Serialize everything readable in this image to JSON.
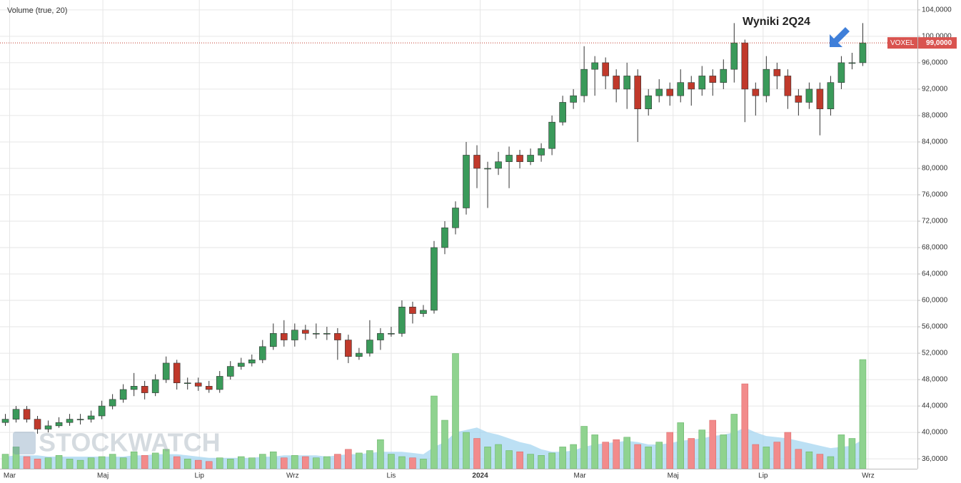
{
  "chart_data": {
    "type": "candlestick",
    "volume_label": "Volume (true, 20)",
    "annotation": "Wyniki 2Q24",
    "watermark": "STOCKWATCH",
    "last_price": {
      "name": "VOXEL",
      "value": 99,
      "label": "99,0000"
    },
    "up_color": "#3a9a5a",
    "down_color": "#c0392b",
    "volume_up_color": "#8fd38f",
    "volume_down_color": "#f28b8b",
    "volume_ma_color": "#9fd3f0",
    "grid": true,
    "x": [
      0,
      1,
      2,
      3,
      4,
      5,
      6,
      7,
      8,
      9,
      10,
      11,
      12,
      13,
      14,
      15,
      16,
      17,
      18,
      19,
      20,
      21,
      22,
      23,
      24,
      25,
      26,
      27,
      28,
      29,
      30,
      31,
      32,
      33,
      34,
      35,
      36,
      37,
      38,
      39,
      40,
      41,
      42,
      43,
      44,
      45,
      46,
      47,
      48,
      49,
      50,
      51,
      52,
      53,
      54,
      55,
      56,
      57,
      58,
      59,
      60,
      61,
      62,
      63,
      64,
      65,
      66,
      67,
      68,
      69,
      70,
      71,
      72,
      73,
      74,
      75,
      76,
      77,
      78,
      79,
      80
    ],
    "open": [
      41.5,
      42,
      43.5,
      42,
      40.5,
      41,
      41.5,
      42,
      42,
      42.5,
      44,
      45,
      46.5,
      47,
      46,
      48,
      50.5,
      47.5,
      47.5,
      47,
      46.5,
      48.5,
      50,
      50.5,
      51,
      53,
      55,
      54,
      55.5,
      55,
      55,
      55,
      54,
      51.5,
      52,
      54,
      55,
      55,
      59,
      58,
      58.5,
      68,
      71,
      74,
      82,
      80,
      80,
      81,
      82,
      81,
      82,
      83,
      87,
      90,
      91,
      95,
      96,
      94,
      92,
      94,
      89,
      91,
      92,
      91,
      93,
      92,
      94,
      93,
      95,
      99,
      92,
      91,
      95,
      94,
      91,
      90,
      92,
      89,
      93,
      96,
      96
    ],
    "high": [
      42.8,
      44,
      44,
      42.5,
      41.8,
      42.3,
      42.8,
      42.8,
      43.3,
      44.8,
      45.8,
      47.3,
      49,
      47.8,
      48.8,
      51.5,
      51,
      48.3,
      48.3,
      47.8,
      49.3,
      50.8,
      51.3,
      51.8,
      54,
      56.5,
      57,
      56.5,
      56.3,
      56.5,
      56,
      55.8,
      54.8,
      52.8,
      57,
      55.8,
      56,
      60,
      59.8,
      59.3,
      69,
      72,
      75,
      84,
      83.5,
      81,
      82.5,
      83.3,
      82.8,
      83,
      83.8,
      88,
      91,
      92,
      98.5,
      97,
      96.8,
      95,
      96,
      95,
      92,
      93.5,
      93,
      95,
      94,
      95.5,
      95,
      96.5,
      102,
      99.5,
      93,
      97,
      96,
      95,
      92,
      93,
      93,
      94,
      97,
      97.5,
      102
    ],
    "low": [
      41,
      41.5,
      41.5,
      39.8,
      40,
      40.7,
      41,
      41.2,
      41.5,
      42,
      43.5,
      44.5,
      45.5,
      45,
      45.5,
      47.5,
      46.5,
      46.5,
      46.3,
      46,
      46,
      48,
      49.5,
      50,
      50.5,
      52.5,
      53,
      53,
      54,
      54.2,
      54,
      51,
      50.5,
      51,
      51.5,
      52.5,
      54.5,
      54.5,
      56.5,
      57.5,
      58,
      67,
      70,
      73,
      77,
      74,
      79,
      77,
      80,
      80.5,
      81,
      82,
      86.5,
      89,
      90,
      91,
      92,
      90,
      89,
      84,
      88,
      90,
      89.5,
      90,
      89.5,
      91,
      91,
      92,
      93,
      87,
      88,
      90,
      92,
      89,
      88,
      89,
      85,
      88,
      92,
      95,
      95.5
    ],
    "close": [
      42,
      43.5,
      42,
      40.5,
      41,
      41.5,
      42,
      42,
      42.5,
      44,
      45,
      46.5,
      47,
      46,
      48,
      50.5,
      47.5,
      47.5,
      47,
      46.5,
      48.5,
      50,
      50.5,
      51,
      53,
      55,
      54,
      55.5,
      55,
      55,
      55,
      54,
      51.5,
      52,
      54,
      55,
      55,
      59,
      58,
      58.5,
      68,
      71,
      74,
      82,
      80,
      80,
      81,
      82,
      81,
      82,
      83,
      87,
      90,
      91,
      95,
      96,
      94,
      92,
      94,
      89,
      91,
      92,
      91,
      93,
      92,
      94,
      93,
      95,
      99,
      92,
      91,
      95,
      94,
      91,
      90,
      92,
      89,
      93,
      96,
      96,
      99
    ],
    "volume": [
      12,
      18,
      10,
      8,
      9,
      11,
      8,
      7,
      9,
      10,
      12,
      9,
      14,
      11,
      13,
      16,
      10,
      8,
      7,
      6,
      9,
      8,
      10,
      9,
      12,
      14,
      9,
      11,
      10,
      9,
      10,
      12,
      16,
      13,
      15,
      24,
      12,
      10,
      9,
      8,
      60,
      40,
      95,
      30,
      25,
      18,
      20,
      15,
      14,
      12,
      11,
      13,
      18,
      20,
      35,
      28,
      22,
      24,
      26,
      20,
      18,
      22,
      30,
      38,
      25,
      32,
      40,
      28,
      45,
      70,
      20,
      18,
      22,
      30,
      16,
      14,
      12,
      10,
      28,
      25,
      90
    ],
    "volume_ma": [
      10,
      11,
      11,
      11,
      10,
      10,
      10,
      10,
      10,
      10,
      10,
      10,
      11,
      11,
      12,
      12,
      12,
      11,
      10,
      9,
      9,
      9,
      9,
      9,
      10,
      10,
      11,
      11,
      11,
      11,
      10,
      11,
      12,
      12,
      13,
      14,
      14,
      14,
      13,
      12,
      18,
      22,
      30,
      32,
      34,
      30,
      28,
      25,
      22,
      20,
      16,
      14,
      14,
      15,
      18,
      20,
      21,
      22,
      23,
      22,
      20,
      20,
      21,
      23,
      24,
      25,
      27,
      28,
      30,
      34,
      30,
      27,
      26,
      25,
      23,
      21,
      19,
      17,
      18,
      19,
      24
    ],
    "vlim": [
      0,
      100
    ],
    "xlim": [
      -0.5,
      85.1
    ],
    "xticks": [
      {
        "value": 0.4,
        "label": "Mar"
      },
      {
        "value": 9.1,
        "label": "Maj"
      },
      {
        "value": 18.1,
        "label": "Lip"
      },
      {
        "value": 26.8,
        "label": "Wrz"
      },
      {
        "value": 36,
        "label": "Lis"
      },
      {
        "value": 44.3,
        "label": "2024"
      },
      {
        "value": 53.6,
        "label": "Mar"
      },
      {
        "value": 62.3,
        "label": "Maj"
      },
      {
        "value": 70.7,
        "label": "Lip"
      },
      {
        "value": 80.5,
        "label": "Wrz"
      }
    ],
    "ylim": [
      34.5,
      105.5
    ],
    "yticks": [
      {
        "value": 36,
        "label": "36,0000"
      },
      {
        "value": 40,
        "label": "40,0000"
      },
      {
        "value": 44,
        "label": "44,0000"
      },
      {
        "value": 48,
        "label": "48,0000"
      },
      {
        "value": 52,
        "label": "52,0000"
      },
      {
        "value": 56,
        "label": "56,0000"
      },
      {
        "value": 60,
        "label": "60,0000"
      },
      {
        "value": 64,
        "label": "64,0000"
      },
      {
        "value": 68,
        "label": "68,0000"
      },
      {
        "value": 72,
        "label": "72,0000"
      },
      {
        "value": 76,
        "label": "76,0000"
      },
      {
        "value": 80,
        "label": "80,0000"
      },
      {
        "value": 84,
        "label": "84,0000"
      },
      {
        "value": 88,
        "label": "88,0000"
      },
      {
        "value": 92,
        "label": "92,0000"
      },
      {
        "value": 96,
        "label": "96,0000"
      },
      {
        "value": 100,
        "label": "100,0000"
      },
      {
        "value": 104,
        "label": "104,0000"
      }
    ]
  }
}
